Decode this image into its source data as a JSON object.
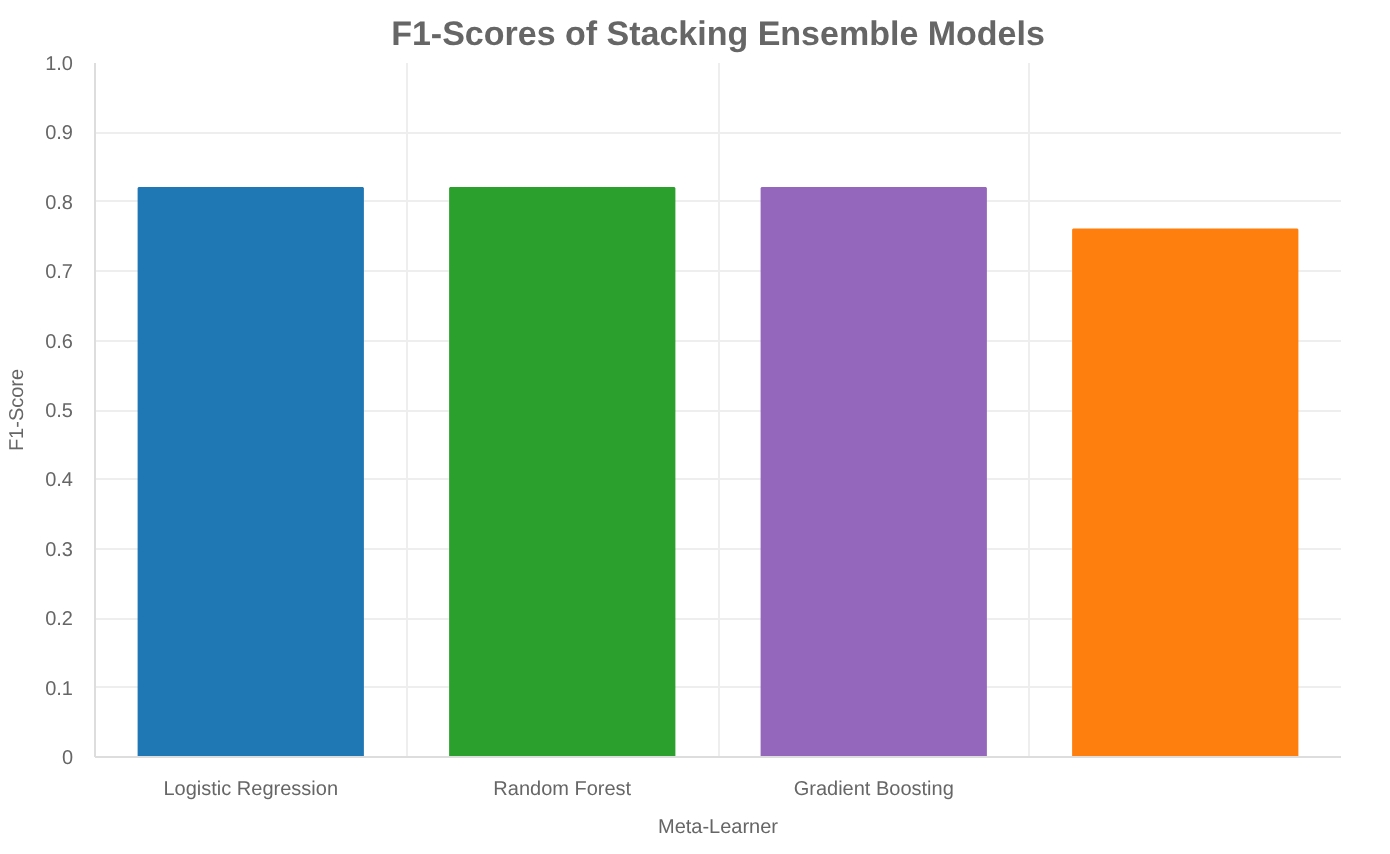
{
  "chart_data": {
    "type": "bar",
    "title": "F1-Scores of Stacking Ensemble Models",
    "xlabel": "Meta-Learner",
    "ylabel": "F1-Score",
    "categories": [
      "Logistic Regression",
      "Random Forest",
      "Gradient Boosting",
      null
    ],
    "values": [
      0.82,
      0.82,
      0.82,
      0.76
    ],
    "colors": [
      "#1f77b4",
      "#2ca02c",
      "#9467bd",
      "#ff7f0e"
    ],
    "ylim": [
      0,
      1.0
    ],
    "yticks": [
      0,
      0.1,
      0.2,
      0.3,
      0.4,
      0.5,
      0.6,
      0.7,
      0.8,
      0.9,
      {
        "value": 1.0,
        "label": "1.0"
      }
    ],
    "grid": true
  }
}
